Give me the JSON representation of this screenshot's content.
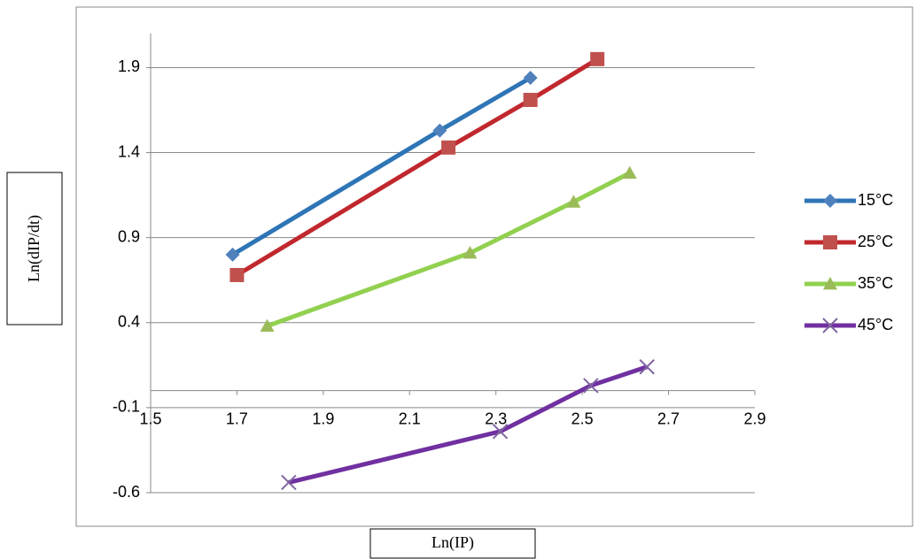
{
  "chart_data": {
    "type": "line",
    "xlabel": "Ln(IP)",
    "ylabel": "Ln(dIP/dt)",
    "xlim": [
      1.5,
      2.9
    ],
    "xticks": [
      1.5,
      1.7,
      1.9,
      2.1,
      2.3,
      2.5,
      2.7,
      2.9
    ],
    "ylim": [
      -0.6,
      2.1
    ],
    "yticks": [
      -0.6,
      -0.1,
      0.4,
      0.9,
      1.4,
      1.9
    ],
    "grid": true,
    "legend": "right",
    "series": [
      {
        "name": "15°C",
        "color": "#2e75b6",
        "marker_color": "#4f81bd",
        "marker": "diamond",
        "x": [
          1.69,
          2.17,
          2.38
        ],
        "values": [
          0.8,
          1.53,
          1.84
        ]
      },
      {
        "name": "25°C",
        "color": "#c0282d",
        "marker_color": "#c0504d",
        "marker": "square",
        "x": [
          1.7,
          2.19,
          2.38,
          2.535
        ],
        "values": [
          0.68,
          1.43,
          1.71,
          1.95
        ]
      },
      {
        "name": "35°C",
        "color": "#92d050",
        "marker_color": "#9bbb59",
        "marker": "triangle",
        "x": [
          1.77,
          2.24,
          2.48,
          2.61
        ],
        "values": [
          0.38,
          0.81,
          1.11,
          1.28
        ]
      },
      {
        "name": "45°C",
        "color": "#7030a0",
        "marker_color": "#8064a2",
        "marker": "x",
        "x": [
          1.82,
          2.31,
          2.52,
          2.65
        ],
        "values": [
          -0.54,
          -0.24,
          0.03,
          0.14
        ]
      }
    ]
  }
}
